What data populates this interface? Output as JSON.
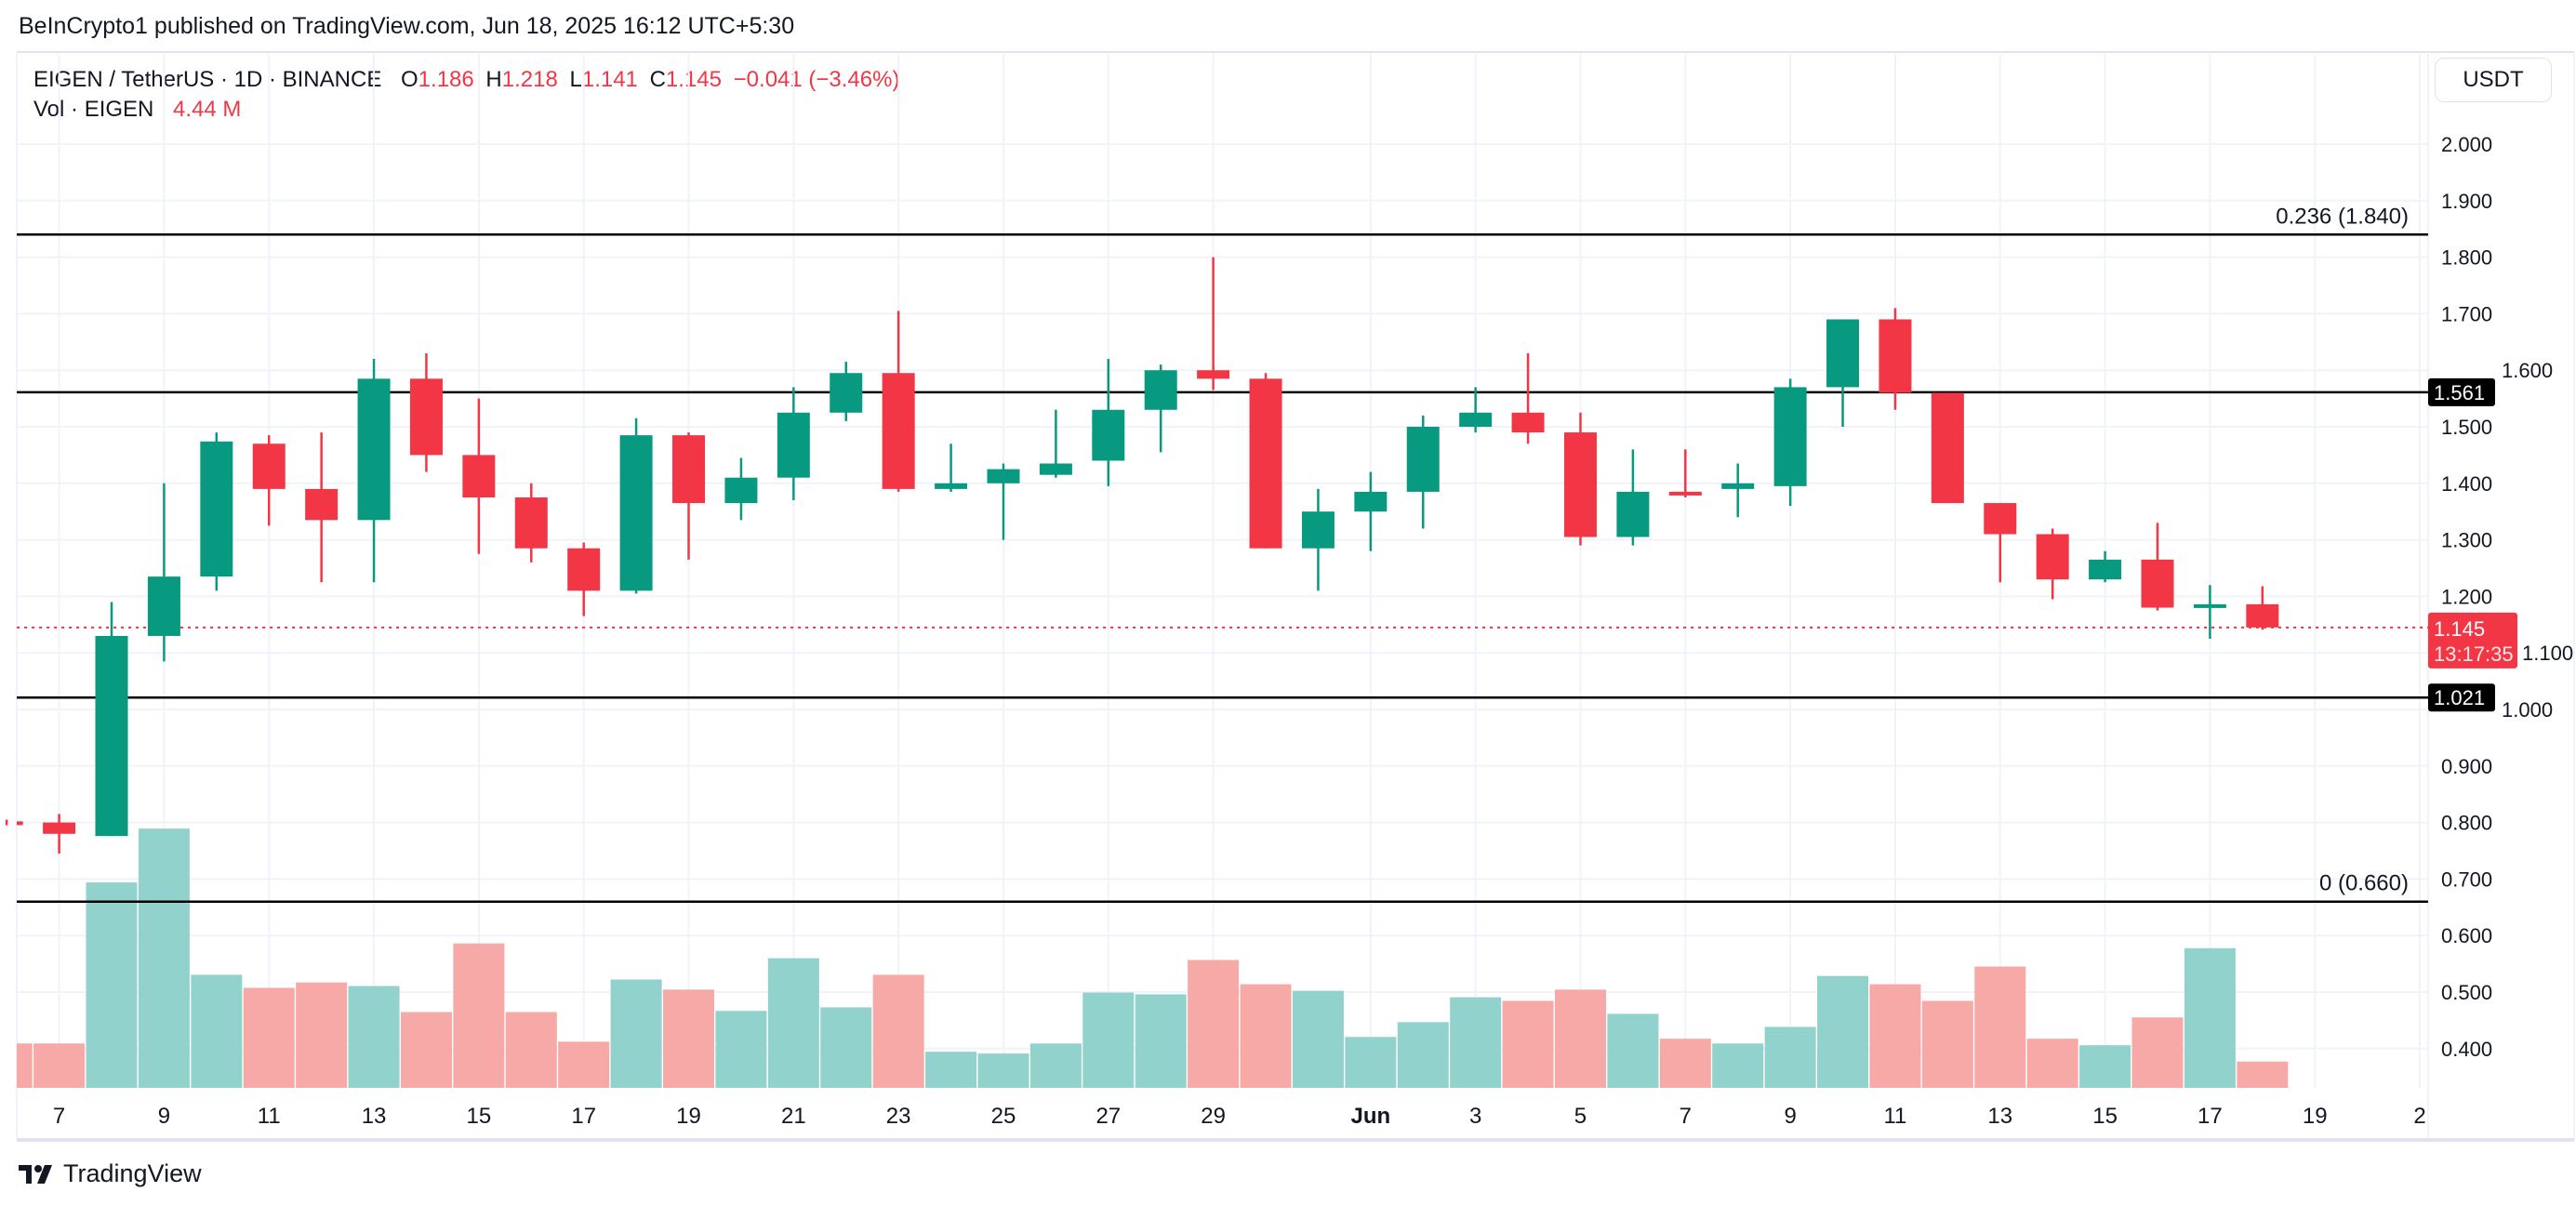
{
  "header": {
    "published": "BeInCrypto1 published on TradingView.com, Jun 18, 2025 16:12 UTC+5:30"
  },
  "legend": {
    "symbol": "EIGEN / TetherUS · 1D · BINANCE",
    "o_label": "O",
    "o": "1.186",
    "h_label": "H",
    "h": "1.218",
    "l_label": "L",
    "l": "1.141",
    "c_label": "C",
    "c": "1.145",
    "change": "−0.041 (−3.46%)",
    "vol_label": "Vol · EIGEN",
    "vol": "4.44 M"
  },
  "price_axis": {
    "currency": "USDT",
    "ticks": [
      "2.000",
      "1.900",
      "1.800",
      "1.700",
      "1.600",
      "1.500",
      "1.400",
      "1.300",
      "1.200",
      "1.100",
      "1.000",
      "0.900",
      "0.800",
      "0.700",
      "0.600",
      "0.500",
      "0.400"
    ],
    "last_price": "1.145",
    "countdown": "13:17:35"
  },
  "levels": [
    {
      "value": 1.84,
      "label": "0.236 (1.840)",
      "type": "fib"
    },
    {
      "value": 1.561,
      "label": "1.561",
      "type": "badge"
    },
    {
      "value": 1.021,
      "label": "1.021",
      "type": "badge"
    },
    {
      "value": 0.66,
      "label": "0 (0.660)",
      "type": "fib"
    }
  ],
  "time_axis": {
    "labels": [
      {
        "day": 1,
        "text": "7"
      },
      {
        "day": 3,
        "text": "9"
      },
      {
        "day": 5,
        "text": "11"
      },
      {
        "day": 7,
        "text": "13"
      },
      {
        "day": 9,
        "text": "15"
      },
      {
        "day": 11,
        "text": "17"
      },
      {
        "day": 13,
        "text": "19"
      },
      {
        "day": 15,
        "text": "21"
      },
      {
        "day": 17,
        "text": "23"
      },
      {
        "day": 19,
        "text": "25"
      },
      {
        "day": 21,
        "text": "27"
      },
      {
        "day": 23,
        "text": "29"
      },
      {
        "day": 26,
        "text": "Jun"
      },
      {
        "day": 28,
        "text": "3"
      },
      {
        "day": 30,
        "text": "5"
      },
      {
        "day": 32,
        "text": "7"
      },
      {
        "day": 34,
        "text": "9"
      },
      {
        "day": 36,
        "text": "11"
      },
      {
        "day": 38,
        "text": "13"
      },
      {
        "day": 40,
        "text": "15"
      },
      {
        "day": 42,
        "text": "17"
      },
      {
        "day": 44,
        "text": "19"
      },
      {
        "day": 46,
        "text": "2"
      }
    ]
  },
  "colors": {
    "up": "#089981",
    "down": "#f23645",
    "up_vol": "#92d2cc",
    "down_vol": "#f7a9a7",
    "level": "#000000",
    "grid": "#f0f3fa"
  },
  "chart_data": {
    "type": "candlestick",
    "title": "EIGEN / TetherUS · 1D · BINANCE",
    "ylim": [
      0.33,
      2.1
    ],
    "columns": [
      "date",
      "open",
      "high",
      "low",
      "close",
      "volume_M"
    ],
    "candles": [
      [
        "May 6",
        0.802,
        0.805,
        0.795,
        0.797,
        7.5
      ],
      [
        "May 7",
        0.8,
        0.815,
        0.745,
        0.78,
        7.5
      ],
      [
        "May 8",
        0.776,
        1.19,
        0.776,
        1.13,
        34.7
      ],
      [
        "May 9",
        1.13,
        1.4,
        1.085,
        1.235,
        43.8
      ],
      [
        "May 10",
        1.235,
        1.49,
        1.21,
        1.474,
        19.1
      ],
      [
        "May 11",
        1.47,
        1.485,
        1.325,
        1.39,
        16.9
      ],
      [
        "May 12",
        1.39,
        1.49,
        1.225,
        1.335,
        17.8
      ],
      [
        "May 13",
        1.335,
        1.62,
        1.225,
        1.585,
        17.2
      ],
      [
        "May 14",
        1.585,
        1.63,
        1.42,
        1.45,
        12.8
      ],
      [
        "May 15",
        1.45,
        1.55,
        1.275,
        1.375,
        24.4
      ],
      [
        "May 16",
        1.375,
        1.4,
        1.26,
        1.285,
        12.8
      ],
      [
        "May 17",
        1.285,
        1.295,
        1.165,
        1.21,
        7.8
      ],
      [
        "May 18",
        1.21,
        1.515,
        1.205,
        1.485,
        18.3
      ],
      [
        "May 19",
        1.485,
        1.49,
        1.265,
        1.365,
        16.6
      ],
      [
        "May 20",
        1.365,
        1.445,
        1.335,
        1.41,
        13.0
      ],
      [
        "May 21",
        1.41,
        1.57,
        1.37,
        1.525,
        21.9
      ],
      [
        "May 22",
        1.525,
        1.615,
        1.51,
        1.595,
        13.6
      ],
      [
        "May 23",
        1.595,
        1.705,
        1.385,
        1.39,
        19.1
      ],
      [
        "May 24",
        1.39,
        1.47,
        1.385,
        1.4,
        6.1
      ],
      [
        "May 25",
        1.4,
        1.435,
        1.3,
        1.425,
        5.8
      ],
      [
        "May 26",
        1.415,
        1.53,
        1.41,
        1.435,
        7.5
      ],
      [
        "May 27",
        1.44,
        1.62,
        1.395,
        1.53,
        16.1
      ],
      [
        "May 28",
        1.53,
        1.61,
        1.455,
        1.6,
        15.8
      ],
      [
        "May 29",
        1.6,
        1.8,
        1.565,
        1.585,
        21.6
      ],
      [
        "May 30",
        1.585,
        1.595,
        1.285,
        1.285,
        17.5
      ],
      [
        "May 31",
        1.285,
        1.39,
        1.21,
        1.35,
        16.4
      ],
      [
        "Jun 1",
        1.35,
        1.42,
        1.28,
        1.385,
        8.6
      ],
      [
        "Jun 2",
        1.385,
        1.52,
        1.32,
        1.5,
        11.1
      ],
      [
        "Jun 3",
        1.5,
        1.57,
        1.49,
        1.525,
        15.3
      ],
      [
        "Jun 4",
        1.525,
        1.63,
        1.47,
        1.49,
        14.7
      ],
      [
        "Jun 5",
        1.49,
        1.525,
        1.29,
        1.305,
        16.6
      ],
      [
        "Jun 6",
        1.305,
        1.46,
        1.29,
        1.385,
        12.5
      ],
      [
        "Jun 7",
        1.385,
        1.46,
        1.375,
        1.38,
        8.3
      ],
      [
        "Jun 8",
        1.39,
        1.435,
        1.34,
        1.4,
        7.5
      ],
      [
        "Jun 9",
        1.395,
        1.585,
        1.36,
        1.57,
        10.3
      ],
      [
        "Jun 10",
        1.57,
        1.69,
        1.5,
        1.69,
        18.9
      ],
      [
        "Jun 11",
        1.69,
        1.71,
        1.53,
        1.56,
        17.5
      ],
      [
        "Jun 12",
        1.56,
        1.56,
        1.365,
        1.365,
        14.7
      ],
      [
        "Jun 13",
        1.365,
        1.365,
        1.225,
        1.31,
        20.5
      ],
      [
        "Jun 14",
        1.31,
        1.32,
        1.195,
        1.23,
        8.3
      ],
      [
        "Jun 15",
        1.23,
        1.28,
        1.225,
        1.265,
        7.2
      ],
      [
        "Jun 16",
        1.265,
        1.33,
        1.175,
        1.18,
        11.9
      ],
      [
        "Jun 17",
        1.185,
        1.22,
        1.125,
        1.186,
        23.6
      ],
      [
        "Jun 18",
        1.186,
        1.218,
        1.141,
        1.145,
        4.44
      ]
    ]
  },
  "footer": {
    "brand": "TradingView"
  }
}
